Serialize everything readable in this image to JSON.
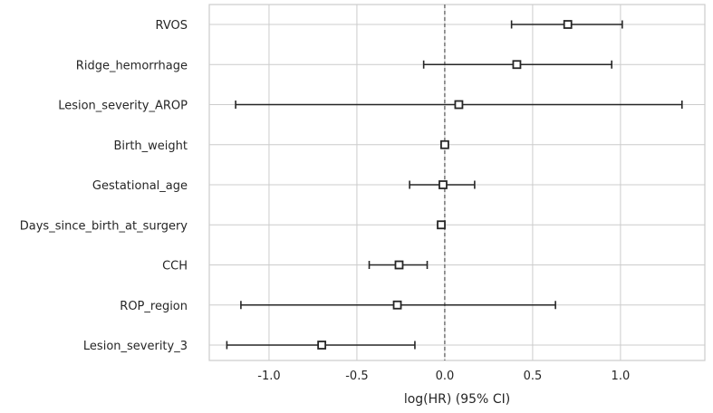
{
  "chart_data": {
    "type": "scatter",
    "subtype": "forest-plot",
    "title": "",
    "xlabel": "log(HR) (95% CI)",
    "ylabel": "",
    "xlim": [
      -1.34,
      1.48
    ],
    "xticks": [
      -1.0,
      -0.5,
      0.0,
      0.5,
      1.0
    ],
    "xtick_labels": [
      "-1.0",
      "-0.5",
      "0.0",
      "0.5",
      "1.0"
    ],
    "reference_line": 0.0,
    "grid": true,
    "legend": "none",
    "categories": [
      "RVOS",
      "Ridge_hemorrhage",
      "Lesion_severity_AROP",
      "Birth_weight",
      "Gestational_age",
      "Days_since_birth_at_surgery",
      "CCH",
      "ROP_region",
      "Lesion_severity_3"
    ],
    "estimates": [
      0.7,
      0.41,
      0.08,
      0.0,
      -0.01,
      -0.02,
      -0.26,
      -0.27,
      -0.7
    ],
    "ci_lower": [
      0.38,
      -0.12,
      -1.19,
      -0.01,
      -0.2,
      -0.03,
      -0.43,
      -1.16,
      -1.24
    ],
    "ci_upper": [
      1.01,
      0.95,
      1.35,
      0.01,
      0.17,
      -0.01,
      -0.1,
      0.63,
      -0.17
    ]
  },
  "colors": {
    "marker_edge": "#262626",
    "marker_fill": "#ffffff",
    "error_bar": "#262626",
    "reference_line": "#555555",
    "grid": "#cccccc",
    "frame": "#cccccc",
    "text": "#262626"
  }
}
